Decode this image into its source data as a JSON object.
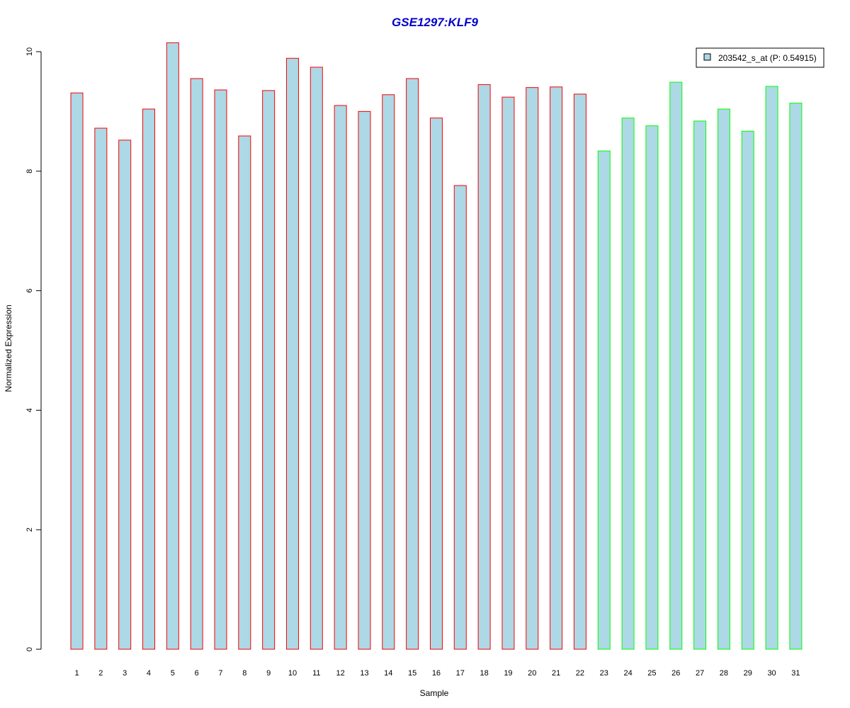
{
  "chart_data": {
    "type": "bar",
    "title": "GSE1297:KLF9",
    "xlabel": "Sample",
    "ylabel": "Normalized Expression",
    "ylim": [
      0,
      10.2
    ],
    "yticks": [
      0,
      2,
      4,
      6,
      8,
      10
    ],
    "categories": [
      "1",
      "2",
      "3",
      "4",
      "5",
      "6",
      "7",
      "8",
      "9",
      "10",
      "11",
      "12",
      "13",
      "14",
      "15",
      "16",
      "17",
      "18",
      "19",
      "20",
      "21",
      "22",
      "23",
      "24",
      "25",
      "26",
      "27",
      "28",
      "29",
      "30",
      "31"
    ],
    "series": [
      {
        "name": "203542_s_at (P: 0.54915)",
        "values": [
          9.31,
          8.72,
          8.52,
          9.04,
          10.15,
          9.55,
          9.36,
          8.59,
          9.35,
          9.89,
          9.74,
          9.1,
          9.0,
          9.28,
          9.55,
          8.89,
          7.76,
          9.45,
          9.24,
          9.4,
          9.41,
          9.29,
          8.34,
          8.89,
          8.76,
          9.49,
          8.84,
          9.04,
          8.67,
          9.42,
          9.14
        ],
        "fill": "#add8e6",
        "border_colors": [
          "#ff0000",
          "#ff0000",
          "#ff0000",
          "#ff0000",
          "#ff0000",
          "#ff0000",
          "#ff0000",
          "#ff0000",
          "#ff0000",
          "#ff0000",
          "#ff0000",
          "#ff0000",
          "#ff0000",
          "#ff0000",
          "#ff0000",
          "#ff0000",
          "#ff0000",
          "#ff0000",
          "#ff0000",
          "#ff0000",
          "#ff0000",
          "#ff0000",
          "#00ff00",
          "#00ff00",
          "#00ff00",
          "#00ff00",
          "#00ff00",
          "#00ff00",
          "#00ff00",
          "#00ff00",
          "#00ff00"
        ]
      }
    ],
    "legend": {
      "position": "top-right",
      "label": "203542_s_at (P: 0.54915)"
    },
    "grid": false
  }
}
